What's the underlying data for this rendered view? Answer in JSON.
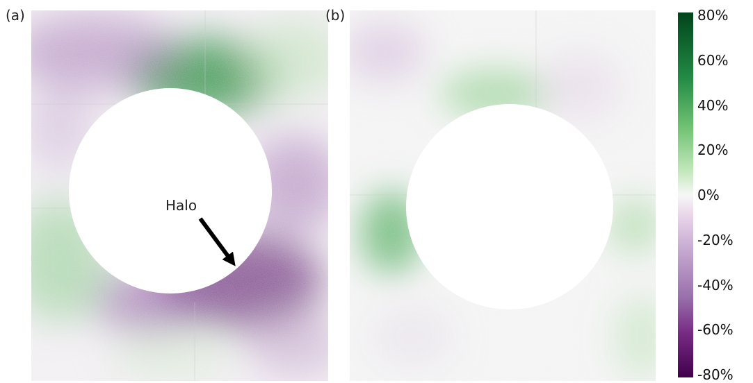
{
  "panels": [
    {
      "label": "(a)",
      "annotation": "Halo"
    },
    {
      "label": "(b)"
    }
  ],
  "colorbar": {
    "ticks": [
      "80%",
      "60%",
      "40%",
      "20%",
      "0%",
      "-20%",
      "-40%",
      "-60%",
      "-80%"
    ],
    "colors": {
      "max": "#00441b",
      "mid": "#f7f7f7",
      "min": "#40004b"
    }
  }
}
